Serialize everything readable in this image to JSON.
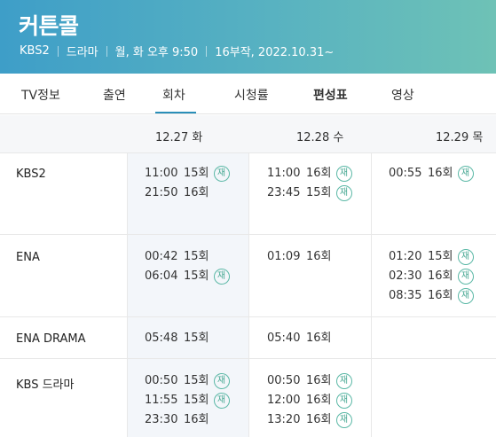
{
  "program": {
    "title": "커튼콜",
    "meta": [
      "KBS2",
      "드라마",
      "월, 화 오후 9:50",
      "16부작, 2022.10.31~"
    ]
  },
  "tabs": [
    {
      "label": "TV정보",
      "selected": false
    },
    {
      "label": "출연",
      "selected": false
    },
    {
      "label": "회차",
      "selected": true
    },
    {
      "label": "시청률",
      "selected": false
    },
    {
      "label": "편성표",
      "selected": false
    },
    {
      "label": "영상",
      "selected": false
    }
  ],
  "schedule": {
    "dates": [
      "12.27 화",
      "12.28 수",
      "12.29 목"
    ],
    "rerun_badge": "재",
    "rows": [
      {
        "channel": "KBS2",
        "cells": [
          [
            {
              "time": "11:00",
              "episode": "15회",
              "rerun": true
            },
            {
              "time": "21:50",
              "episode": "16회",
              "rerun": false
            }
          ],
          [
            {
              "time": "11:00",
              "episode": "16회",
              "rerun": true
            },
            {
              "time": "23:45",
              "episode": "15회",
              "rerun": true
            }
          ],
          [
            {
              "time": "00:55",
              "episode": "16회",
              "rerun": true
            }
          ]
        ]
      },
      {
        "channel": "ENA",
        "cells": [
          [
            {
              "time": "00:42",
              "episode": "15회",
              "rerun": false
            },
            {
              "time": "06:04",
              "episode": "15회",
              "rerun": true
            }
          ],
          [
            {
              "time": "01:09",
              "episode": "16회",
              "rerun": false
            }
          ],
          [
            {
              "time": "01:20",
              "episode": "15회",
              "rerun": true
            },
            {
              "time": "02:30",
              "episode": "16회",
              "rerun": true
            },
            {
              "time": "08:35",
              "episode": "16회",
              "rerun": true
            }
          ]
        ]
      },
      {
        "channel": "ENA DRAMA",
        "cells": [
          [
            {
              "time": "05:48",
              "episode": "15회",
              "rerun": false
            }
          ],
          [
            {
              "time": "05:40",
              "episode": "16회",
              "rerun": false
            }
          ],
          []
        ]
      },
      {
        "channel": "KBS 드라마",
        "cells": [
          [
            {
              "time": "00:50",
              "episode": "15회",
              "rerun": true
            },
            {
              "time": "11:55",
              "episode": "15회",
              "rerun": true
            },
            {
              "time": "23:30",
              "episode": "16회",
              "rerun": false
            }
          ],
          [
            {
              "time": "00:50",
              "episode": "16회",
              "rerun": true
            },
            {
              "time": "12:00",
              "episode": "16회",
              "rerun": true
            },
            {
              "time": "13:20",
              "episode": "16회",
              "rerun": true
            }
          ],
          []
        ]
      }
    ]
  },
  "colors": {
    "header_gradient_start": "#3e9ec8",
    "header_gradient_end": "#6ec2b6",
    "tab_underline": "#2a8fb9",
    "rerun_badge": "#5bb8a6"
  }
}
